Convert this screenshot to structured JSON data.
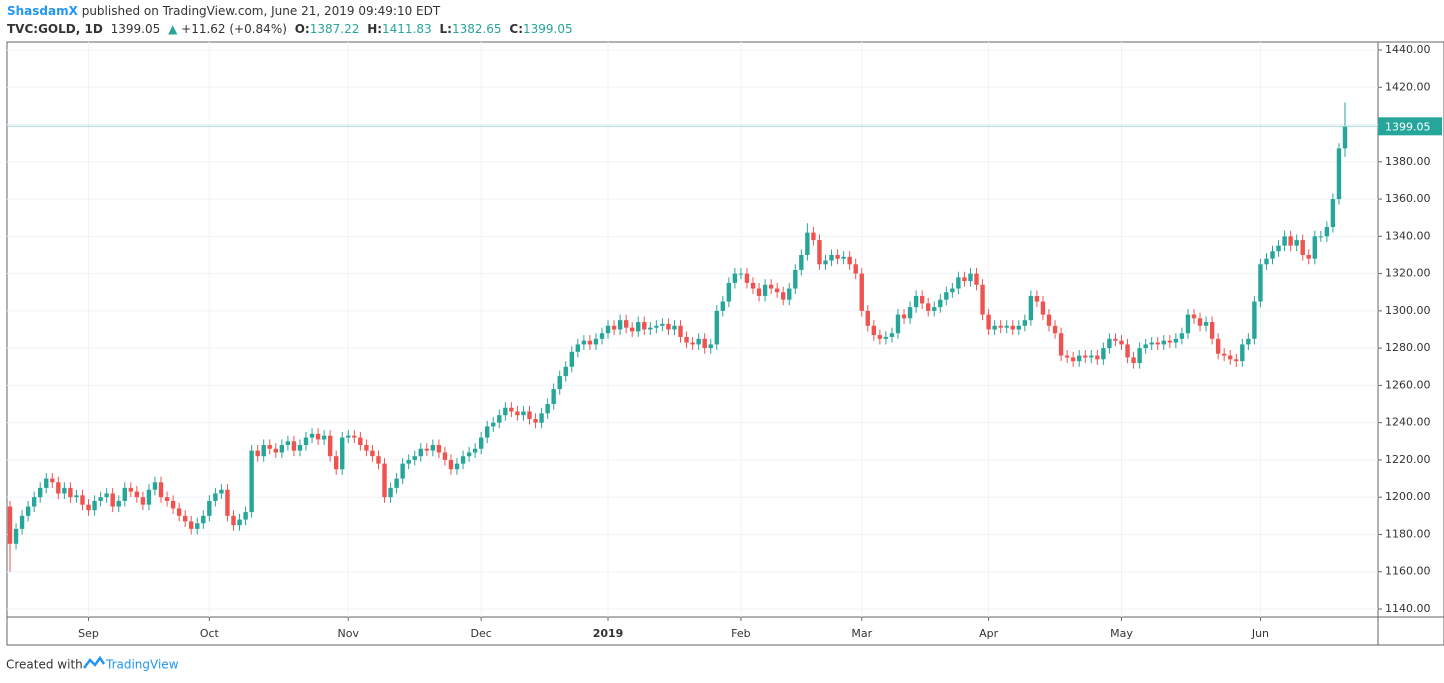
{
  "header": {
    "publisher": "ShasdamX",
    "published": "published on TradingView.com, June 21, 2019 09:49:10 EDT",
    "symbol": "TVC:GOLD, 1D",
    "change_arrow": "▲",
    "change": "+11.62 (+0.84%)",
    "o_label": "O:",
    "h_label": "H:",
    "l_label": "L:",
    "c_label": "C:"
  },
  "footer": {
    "created_with": "Created with",
    "brand": "TradingView"
  },
  "chart_data": {
    "type": "candlestick",
    "up_color": "#26a69a",
    "down_color": "#ef5350",
    "grid": true,
    "ylim": [
      1135.7,
      1444.3
    ],
    "yticks": [
      {
        "value": 1140,
        "label": "1140.00"
      },
      {
        "value": 1160,
        "label": "1160.00"
      },
      {
        "value": 1180,
        "label": "1180.00"
      },
      {
        "value": 1200,
        "label": "1200.00"
      },
      {
        "value": 1220,
        "label": "1220.00"
      },
      {
        "value": 1240,
        "label": "1240.00"
      },
      {
        "value": 1260,
        "label": "1260.00"
      },
      {
        "value": 1280,
        "label": "1280.00"
      },
      {
        "value": 1300,
        "label": "1300.00"
      },
      {
        "value": 1320,
        "label": "1320.00"
      },
      {
        "value": 1340,
        "label": "1340.00"
      },
      {
        "value": 1360,
        "label": "1360.00"
      },
      {
        "value": 1380,
        "label": "1380.00"
      },
      {
        "value": 1400,
        "label": "1400.00"
      },
      {
        "value": 1420,
        "label": "1420.00"
      },
      {
        "value": 1440,
        "label": "1440.00"
      }
    ],
    "categories": [
      null,
      null,
      null,
      null,
      null,
      null,
      null,
      null,
      null,
      null,
      null,
      null,
      null,
      "Sep",
      null,
      null,
      null,
      null,
      null,
      null,
      null,
      null,
      null,
      null,
      null,
      null,
      null,
      null,
      null,
      null,
      null,
      null,
      null,
      "Oct",
      null,
      null,
      null,
      null,
      null,
      null,
      null,
      null,
      null,
      null,
      null,
      null,
      null,
      null,
      null,
      null,
      null,
      null,
      null,
      null,
      null,
      null,
      "Nov",
      null,
      null,
      null,
      null,
      null,
      null,
      null,
      null,
      null,
      null,
      null,
      null,
      null,
      null,
      null,
      null,
      null,
      null,
      null,
      null,
      null,
      "Dec",
      null,
      null,
      null,
      null,
      null,
      null,
      null,
      null,
      null,
      null,
      null,
      null,
      null,
      null,
      null,
      null,
      null,
      null,
      null,
      null,
      "2019",
      null,
      null,
      null,
      null,
      null,
      null,
      null,
      null,
      null,
      null,
      null,
      null,
      null,
      null,
      null,
      null,
      null,
      null,
      null,
      null,
      null,
      "Feb",
      null,
      null,
      null,
      null,
      null,
      null,
      null,
      null,
      null,
      null,
      null,
      null,
      null,
      null,
      null,
      null,
      null,
      null,
      null,
      "Mar",
      null,
      null,
      null,
      null,
      null,
      null,
      null,
      null,
      null,
      null,
      null,
      null,
      null,
      null,
      null,
      null,
      null,
      null,
      null,
      null,
      "Apr",
      null,
      null,
      null,
      null,
      null,
      null,
      null,
      null,
      null,
      null,
      null,
      null,
      null,
      null,
      null,
      null,
      null,
      null,
      null,
      null,
      null,
      "May",
      null,
      null,
      null,
      null,
      null,
      null,
      null,
      null,
      null,
      null,
      null,
      null,
      null,
      null,
      null,
      null,
      null,
      null,
      null,
      null,
      null,
      null,
      "Jun",
      null,
      null,
      null,
      null,
      null,
      null,
      null,
      null,
      null,
      null,
      null,
      null,
      null,
      null
    ],
    "open": [
      1195,
      1175,
      1183,
      1190,
      1195,
      1200,
      1205,
      1210,
      1208,
      1202,
      1205,
      1200,
      1201,
      1196,
      1193,
      1198,
      1200,
      1202,
      1195,
      1198,
      1205,
      1203,
      1200,
      1196,
      1204,
      1208,
      1200,
      1198,
      1194,
      1190,
      1187,
      1183,
      1186,
      1190,
      1198,
      1202,
      1204,
      1190,
      1185,
      1188,
      1192,
      1225,
      1222,
      1228,
      1226,
      1224,
      1228,
      1230,
      1225,
      1228,
      1232,
      1234,
      1231,
      1233,
      1222,
      1215,
      1232,
      1233,
      1232,
      1228,
      1225,
      1222,
      1218,
      1200,
      1205,
      1210,
      1218,
      1220,
      1222,
      1226,
      1225,
      1228,
      1224,
      1220,
      1215,
      1218,
      1222,
      1224,
      1226,
      1232,
      1238,
      1240,
      1244,
      1248,
      1246,
      1244,
      1246,
      1242,
      1240,
      1245,
      1250,
      1258,
      1265,
      1270,
      1278,
      1282,
      1284,
      1282,
      1285,
      1288,
      1292,
      1290,
      1295,
      1291,
      1289,
      1294,
      1290,
      1291,
      1292,
      1293,
      1290,
      1292,
      1286,
      1283,
      1282,
      1285,
      1280,
      1282,
      1300,
      1305,
      1315,
      1320,
      1320,
      1315,
      1312,
      1308,
      1314,
      1312,
      1310,
      1306,
      1312,
      1322,
      1330,
      1342,
      1338,
      1325,
      1327,
      1330,
      1328,
      1329,
      1325,
      1320,
      1300,
      1292,
      1287,
      1285,
      1286,
      1288,
      1298,
      1296,
      1302,
      1308,
      1304,
      1300,
      1302,
      1306,
      1310,
      1312,
      1318,
      1316,
      1320,
      1314,
      1298,
      1290,
      1292,
      1291,
      1292,
      1290,
      1292,
      1295,
      1308,
      1305,
      1298,
      1292,
      1288,
      1276,
      1275,
      1273,
      1276,
      1275,
      1276,
      1274,
      1280,
      1285,
      1284,
      1282,
      1275,
      1272,
      1280,
      1282,
      1283,
      1282,
      1284,
      1283,
      1285,
      1288,
      1298,
      1296,
      1292,
      1294,
      1285,
      1277,
      1276,
      1274,
      1273,
      1282,
      1285,
      1305,
      1325,
      1328,
      1332,
      1335,
      1340,
      1335,
      1338,
      1330,
      1328,
      1340,
      1340,
      1345,
      1360,
      1387.22
    ],
    "high": [
      1198,
      1186,
      1193,
      1198,
      1203,
      1208,
      1213,
      1213,
      1211,
      1208,
      1208,
      1204,
      1204,
      1199,
      1201,
      1203,
      1205,
      1205,
      1201,
      1208,
      1208,
      1206,
      1203,
      1207,
      1211,
      1211,
      1203,
      1201,
      1197,
      1193,
      1190,
      1189,
      1193,
      1201,
      1205,
      1207,
      1207,
      1193,
      1191,
      1195,
      1228,
      1228,
      1231,
      1231,
      1229,
      1231,
      1233,
      1233,
      1231,
      1235,
      1237,
      1237,
      1236,
      1236,
      1225,
      1235,
      1236,
      1236,
      1235,
      1231,
      1228,
      1225,
      1221,
      1208,
      1213,
      1221,
      1223,
      1225,
      1229,
      1229,
      1231,
      1231,
      1227,
      1223,
      1221,
      1225,
      1227,
      1229,
      1235,
      1241,
      1243,
      1247,
      1251,
      1251,
      1249,
      1249,
      1249,
      1245,
      1248,
      1253,
      1261,
      1268,
      1273,
      1281,
      1285,
      1287,
      1287,
      1288,
      1291,
      1295,
      1295,
      1298,
      1298,
      1294,
      1297,
      1297,
      1294,
      1295,
      1296,
      1296,
      1295,
      1295,
      1289,
      1286,
      1288,
      1288,
      1285,
      1303,
      1308,
      1318,
      1323,
      1323,
      1323,
      1318,
      1315,
      1317,
      1317,
      1315,
      1313,
      1315,
      1325,
      1333,
      1347,
      1345,
      1341,
      1330,
      1333,
      1333,
      1332,
      1332,
      1328,
      1323,
      1303,
      1295,
      1290,
      1289,
      1291,
      1301,
      1301,
      1305,
      1311,
      1311,
      1307,
      1305,
      1309,
      1313,
      1315,
      1321,
      1321,
      1323,
      1323,
      1317,
      1301,
      1295,
      1295,
      1295,
      1295,
      1295,
      1298,
      1311,
      1311,
      1308,
      1301,
      1295,
      1291,
      1279,
      1278,
      1279,
      1279,
      1279,
      1279,
      1283,
      1288,
      1288,
      1287,
      1285,
      1278,
      1283,
      1285,
      1286,
      1286,
      1287,
      1287,
      1288,
      1291,
      1301,
      1301,
      1299,
      1297,
      1297,
      1288,
      1280,
      1279,
      1277,
      1285,
      1288,
      1308,
      1328,
      1331,
      1335,
      1338,
      1343,
      1343,
      1341,
      1341,
      1333,
      1343,
      1343,
      1348,
      1363,
      1390,
      1411.83
    ],
    "low": [
      1160,
      1172,
      1180,
      1187,
      1192,
      1197,
      1202,
      1205,
      1199,
      1199,
      1197,
      1197,
      1193,
      1190,
      1190,
      1195,
      1197,
      1192,
      1192,
      1195,
      1200,
      1197,
      1193,
      1193,
      1201,
      1197,
      1195,
      1191,
      1187,
      1184,
      1180,
      1180,
      1183,
      1187,
      1195,
      1199,
      1187,
      1182,
      1182,
      1185,
      1189,
      1219,
      1219,
      1223,
      1221,
      1221,
      1225,
      1222,
      1222,
      1225,
      1229,
      1228,
      1228,
      1219,
      1212,
      1212,
      1229,
      1229,
      1225,
      1222,
      1219,
      1215,
      1197,
      1197,
      1202,
      1207,
      1215,
      1217,
      1219,
      1222,
      1222,
      1221,
      1217,
      1212,
      1212,
      1215,
      1219,
      1221,
      1223,
      1229,
      1235,
      1237,
      1241,
      1243,
      1241,
      1241,
      1239,
      1237,
      1237,
      1242,
      1247,
      1255,
      1262,
      1267,
      1275,
      1279,
      1279,
      1279,
      1282,
      1285,
      1287,
      1287,
      1288,
      1286,
      1286,
      1287,
      1287,
      1288,
      1289,
      1287,
      1287,
      1283,
      1280,
      1279,
      1279,
      1277,
      1277,
      1279,
      1297,
      1302,
      1312,
      1317,
      1312,
      1309,
      1305,
      1305,
      1309,
      1307,
      1303,
      1303,
      1309,
      1319,
      1327,
      1335,
      1322,
      1322,
      1324,
      1325,
      1325,
      1322,
      1317,
      1297,
      1289,
      1284,
      1282,
      1282,
      1283,
      1285,
      1293,
      1293,
      1299,
      1301,
      1297,
      1297,
      1299,
      1303,
      1307,
      1309,
      1313,
      1313,
      1311,
      1295,
      1287,
      1287,
      1288,
      1288,
      1287,
      1287,
      1289,
      1292,
      1302,
      1295,
      1289,
      1285,
      1273,
      1272,
      1270,
      1270,
      1272,
      1272,
      1271,
      1271,
      1277,
      1281,
      1279,
      1272,
      1269,
      1269,
      1277,
      1279,
      1279,
      1279,
      1280,
      1280,
      1282,
      1285,
      1293,
      1289,
      1289,
      1282,
      1274,
      1273,
      1271,
      1270,
      1270,
      1279,
      1282,
      1302,
      1322,
      1325,
      1329,
      1332,
      1332,
      1332,
      1327,
      1325,
      1325,
      1337,
      1337,
      1342,
      1357,
      1382.65
    ],
    "close": [
      1175,
      1183,
      1190,
      1195,
      1200,
      1205,
      1210,
      1208,
      1202,
      1205,
      1200,
      1201,
      1196,
      1193,
      1198,
      1200,
      1202,
      1195,
      1198,
      1205,
      1203,
      1200,
      1196,
      1204,
      1208,
      1200,
      1198,
      1194,
      1190,
      1187,
      1183,
      1186,
      1190,
      1198,
      1202,
      1204,
      1190,
      1185,
      1188,
      1192,
      1225,
      1222,
      1228,
      1226,
      1224,
      1228,
      1230,
      1225,
      1228,
      1232,
      1234,
      1231,
      1233,
      1222,
      1215,
      1232,
      1233,
      1232,
      1228,
      1225,
      1222,
      1218,
      1200,
      1205,
      1210,
      1218,
      1220,
      1222,
      1226,
      1225,
      1228,
      1224,
      1220,
      1215,
      1218,
      1222,
      1224,
      1226,
      1232,
      1238,
      1240,
      1244,
      1248,
      1246,
      1244,
      1246,
      1242,
      1240,
      1245,
      1250,
      1258,
      1265,
      1270,
      1278,
      1282,
      1284,
      1282,
      1285,
      1288,
      1292,
      1290,
      1295,
      1291,
      1289,
      1294,
      1290,
      1291,
      1292,
      1293,
      1290,
      1292,
      1286,
      1283,
      1282,
      1285,
      1280,
      1282,
      1300,
      1305,
      1315,
      1320,
      1320,
      1315,
      1312,
      1308,
      1314,
      1312,
      1310,
      1306,
      1312,
      1322,
      1330,
      1342,
      1338,
      1325,
      1327,
      1330,
      1328,
      1329,
      1325,
      1320,
      1300,
      1292,
      1287,
      1285,
      1286,
      1288,
      1298,
      1296,
      1302,
      1308,
      1304,
      1300,
      1302,
      1306,
      1310,
      1312,
      1318,
      1316,
      1320,
      1314,
      1298,
      1290,
      1292,
      1291,
      1292,
      1290,
      1292,
      1295,
      1308,
      1305,
      1298,
      1292,
      1288,
      1276,
      1275,
      1273,
      1276,
      1275,
      1276,
      1274,
      1280,
      1285,
      1284,
      1282,
      1275,
      1272,
      1280,
      1282,
      1283,
      1282,
      1284,
      1283,
      1285,
      1288,
      1298,
      1296,
      1292,
      1294,
      1285,
      1277,
      1276,
      1274,
      1273,
      1282,
      1285,
      1305,
      1325,
      1328,
      1332,
      1335,
      1340,
      1335,
      1338,
      1330,
      1328,
      1340,
      1340,
      1345,
      1360,
      1387.22,
      1399.05
    ]
  }
}
